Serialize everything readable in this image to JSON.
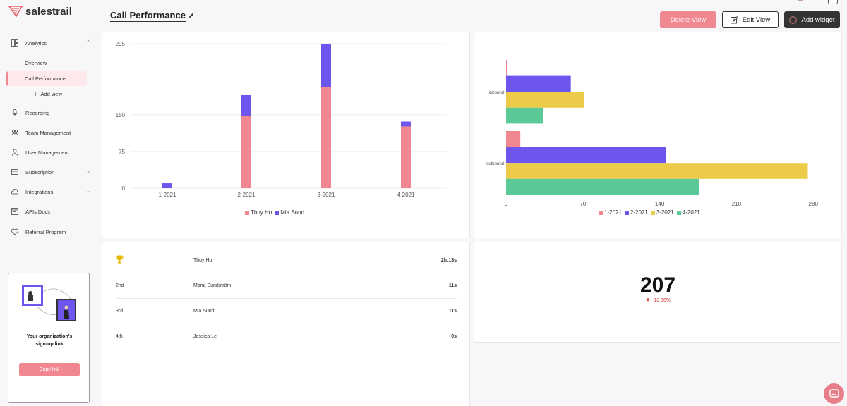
{
  "brand": {
    "name": "salestrail"
  },
  "sidebar": {
    "items": [
      {
        "label": "Analytics",
        "icon": "grid-icon",
        "chevron": "⌃"
      },
      {
        "label": "Recording",
        "icon": "microphone-icon"
      },
      {
        "label": "Team Management",
        "icon": "team-icon"
      },
      {
        "label": "User Management",
        "icon": "user-icon"
      },
      {
        "label": "Subscription",
        "icon": "subscription-icon",
        "chevron": "⌄"
      },
      {
        "label": "Integrations",
        "icon": "integrations-icon",
        "chevron": "⌄"
      },
      {
        "label": "APIs Docs",
        "icon": "api-docs-icon"
      },
      {
        "label": "Referral Program",
        "icon": "heart-icon"
      }
    ],
    "analytics_sub": {
      "overview": "Overview",
      "active": "Call Performance",
      "add_view": "Add view"
    },
    "promo": {
      "line1": "Your organization's",
      "line2": "sign-up link",
      "button": "Copy link"
    }
  },
  "header": {
    "title": "Call Performance",
    "delete_label": "Delete View",
    "edit_label": "Edit View",
    "add_label": "Add widget"
  },
  "colors": {
    "pink": "#f08791",
    "purple": "#6c56ee",
    "yellow": "#eccb49",
    "green": "#5bc995",
    "dark": "#333333"
  },
  "chart_data": [
    {
      "type": "bar",
      "stacked": true,
      "categories": [
        "1-2021",
        "2-2021",
        "3-2021",
        "4-2021"
      ],
      "series": [
        {
          "name": "Thuy Ho",
          "values": [
            0,
            148,
            207,
            126
          ]
        },
        {
          "name": "Mia Sund",
          "values": [
            10,
            42,
            88,
            10
          ]
        }
      ],
      "yticks": [
        0,
        75,
        150,
        295
      ],
      "ylim": [
        0,
        295
      ],
      "legend": "bottom"
    },
    {
      "type": "bar",
      "orientation": "horizontal",
      "categories": [
        "inbound",
        "outbound"
      ],
      "series": [
        {
          "name": "1-2021",
          "values": [
            1,
            13
          ]
        },
        {
          "name": "2-2021",
          "values": [
            59,
            146
          ]
        },
        {
          "name": "3-2021",
          "values": [
            71,
            275
          ]
        },
        {
          "name": "4-2021",
          "values": [
            34,
            176
          ]
        }
      ],
      "xticks": [
        0,
        70,
        140,
        210,
        280
      ],
      "xlim": [
        0,
        285
      ],
      "legend": "bottom"
    }
  ],
  "leaderboard": [
    {
      "rank": "",
      "name": "Thuy Ho",
      "value": "2h:13s",
      "trophy": true
    },
    {
      "rank": "2nd",
      "name": "Maria Sundström",
      "value": "11s"
    },
    {
      "rank": "3rd",
      "name": "Mia Sund",
      "value": "11s"
    },
    {
      "rank": "4th",
      "name": "Jessica Le",
      "value": "0s"
    }
  ],
  "kpi": {
    "value": "207",
    "delta": "-12.66%"
  }
}
